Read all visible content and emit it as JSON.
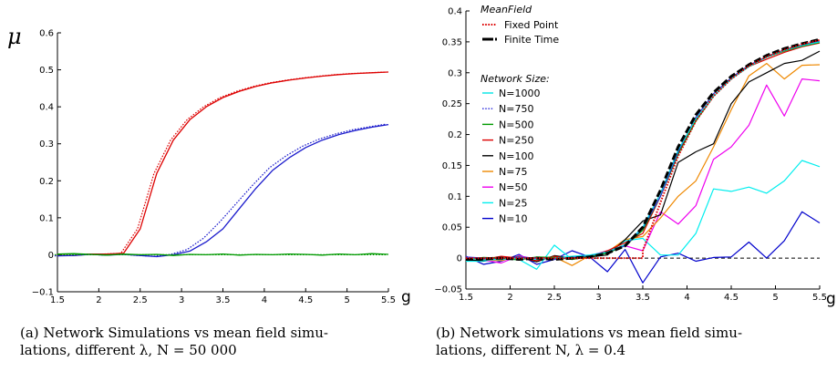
{
  "captions": {
    "a_line1": "(a) Network Simulations vs mean field simu-",
    "a_line2": "lations, different λ, N = 50 000",
    "b_line1": "(b) Network simulations vs mean field simu-",
    "b_line2": "lations, different N, λ = 0.4"
  },
  "chart_data": [
    {
      "type": "line",
      "title": "",
      "ylabel": "μ",
      "xlabel": "g",
      "xlim": [
        1.5,
        5.5
      ],
      "ylim": [
        -0.1,
        0.6
      ],
      "xticks": [
        "1.5",
        "2",
        "2.5",
        "3",
        "3.5",
        "4",
        "4.5",
        "5",
        "5.5"
      ],
      "yticks": [
        "−0.1",
        "0",
        "0.1",
        "0.2",
        "0.3",
        "0.4",
        "0.5",
        "0.6"
      ],
      "x": [
        1.5,
        1.7,
        1.9,
        2.1,
        2.3,
        2.5,
        2.7,
        2.9,
        3.1,
        3.3,
        3.5,
        3.7,
        3.9,
        4.1,
        4.3,
        4.5,
        4.7,
        4.9,
        5.1,
        5.3,
        5.5
      ],
      "grid": false,
      "series": [
        {
          "color": "#dd0000",
          "style": "solid",
          "values": [
            -0.002,
            -0.002,
            0.002,
            0.002,
            0.004,
            0.07,
            0.22,
            0.31,
            0.365,
            0.4,
            0.425,
            0.442,
            0.455,
            0.465,
            0.472,
            0.478,
            0.483,
            0.487,
            0.49,
            0.492,
            0.494
          ]
        },
        {
          "color": "#dd0000",
          "style": "dotted",
          "values": [
            -0.002,
            -0.002,
            0.002,
            0.002,
            0.004,
            0.07,
            0.22,
            0.31,
            0.365,
            0.4,
            0.425,
            0.442,
            0.455,
            0.465,
            0.472,
            0.478,
            0.483,
            0.487,
            0.49,
            0.492,
            0.494
          ]
        },
        {
          "color": "#1a1acc",
          "style": "solid",
          "values": [
            -0.003,
            -0.002,
            0.001,
            -0.001,
            0.001,
            -0.002,
            -0.005,
            0.0,
            0.01,
            0.035,
            0.07,
            0.125,
            0.18,
            0.228,
            0.262,
            0.29,
            0.31,
            0.325,
            0.336,
            0.345,
            0.352
          ]
        },
        {
          "color": "#1a1acc",
          "style": "dotted",
          "values": [
            -0.003,
            -0.002,
            0.001,
            -0.001,
            0.001,
            -0.002,
            -0.004,
            0.001,
            0.014,
            0.045,
            0.09,
            0.14,
            0.19,
            0.236,
            0.268,
            0.294,
            0.313,
            0.327,
            0.338,
            0.346,
            0.353
          ]
        },
        {
          "color": "#009900",
          "style": "solid",
          "values": [
            0.002,
            0.003,
            0.001,
            -0.001,
            0.002,
            0.0,
            0.001,
            -0.002,
            0.001,
            0.0,
            0.002,
            -0.001,
            0.001,
            0.0,
            0.002,
            0.001,
            -0.001,
            0.002,
            0.0,
            0.003,
            0.001
          ]
        },
        {
          "color": "#009900",
          "style": "dotted",
          "values": [
            0.0,
            0.0,
            0.0,
            0.0,
            0.0,
            0.0,
            0.0,
            0.0,
            0.0,
            0.0,
            0.0,
            0.0,
            0.0,
            0.0,
            0.0,
            0.0,
            0.0,
            0.0,
            0.0,
            0.0,
            0.0
          ]
        }
      ]
    },
    {
      "type": "line",
      "title": "",
      "xlabel": "g",
      "ylabel": "",
      "xlim": [
        1.5,
        5.5
      ],
      "ylim": [
        -0.05,
        0.4
      ],
      "xticks": [
        "1.5",
        "2",
        "2.5",
        "3",
        "3.5",
        "4",
        "4.5",
        "5",
        "5.5"
      ],
      "yticks": [
        "−0.05",
        "0",
        "0.05",
        "0.1",
        "0.15",
        "0.2",
        "0.25",
        "0.3",
        "0.35",
        "0.4"
      ],
      "x": [
        1.5,
        1.7,
        1.9,
        2.1,
        2.3,
        2.5,
        2.7,
        2.9,
        3.1,
        3.3,
        3.5,
        3.7,
        3.9,
        4.1,
        4.3,
        4.5,
        4.7,
        4.9,
        5.1,
        5.3,
        5.5
      ],
      "grid": false,
      "legend": {
        "placement": "top-left",
        "meanfield_title": "MeanField",
        "meanfield_entries": [
          {
            "label": "Fixed Point",
            "color": "#dd0000",
            "style": "dotted"
          },
          {
            "label": "Finite Time",
            "color": "#000000",
            "style": "dashed"
          }
        ],
        "network_title": "Network Size:"
      },
      "meanfield": {
        "fixed_point": {
          "x": [
            1.5,
            3.5,
            3.5,
            3.7,
            3.9,
            4.1,
            4.3,
            4.5,
            4.7,
            4.9,
            5.1,
            5.3,
            5.5
          ],
          "values": [
            0.0,
            0.0,
            0.012,
            0.09,
            0.165,
            0.222,
            0.262,
            0.29,
            0.311,
            0.326,
            0.337,
            0.346,
            0.353
          ]
        },
        "finite_time": {
          "x": [
            1.5,
            1.7,
            1.9,
            2.1,
            2.3,
            2.5,
            2.7,
            2.9,
            3.1,
            3.3,
            3.5,
            3.7,
            3.9,
            4.1,
            4.3,
            4.5,
            4.7,
            4.9,
            5.1,
            5.3,
            5.5
          ],
          "values": [
            -0.002,
            -0.001,
            0.0,
            -0.002,
            0.0,
            -0.002,
            0.0,
            0.002,
            0.008,
            0.02,
            0.05,
            0.11,
            0.18,
            0.232,
            0.268,
            0.294,
            0.313,
            0.328,
            0.339,
            0.347,
            0.354
          ]
        }
      },
      "series": [
        {
          "name": "N=1000",
          "color": "#00e5e5",
          "values": [
            0.0,
            -0.003,
            -0.002,
            0.0,
            -0.002,
            0.0,
            0.003,
            0.005,
            0.01,
            0.022,
            0.05,
            0.105,
            0.175,
            0.225,
            0.262,
            0.29,
            0.31,
            0.325,
            0.336,
            0.344,
            0.35
          ]
        },
        {
          "name": "N=750",
          "color": "#3333dd",
          "values": [
            0.002,
            0.0,
            -0.002,
            0.002,
            0.0,
            -0.002,
            0.002,
            0.004,
            0.01,
            0.02,
            0.048,
            0.1,
            0.172,
            0.228,
            0.266,
            0.292,
            0.312,
            0.326,
            0.337,
            0.345,
            0.351
          ]
        },
        {
          "name": "N=500",
          "color": "#009900",
          "values": [
            -0.002,
            0.001,
            0.0,
            -0.003,
            0.002,
            0.001,
            -0.002,
            0.003,
            0.008,
            0.02,
            0.045,
            0.1,
            0.168,
            0.222,
            0.262,
            0.29,
            0.31,
            0.325,
            0.335,
            0.343,
            0.349
          ]
        },
        {
          "name": "N=250",
          "color": "#dd0000",
          "values": [
            0.002,
            -0.002,
            0.003,
            0.0,
            -0.004,
            0.003,
            -0.002,
            0.002,
            0.012,
            0.025,
            0.04,
            0.1,
            0.17,
            0.222,
            0.262,
            0.29,
            0.31,
            0.322,
            0.333,
            0.342,
            0.348
          ]
        },
        {
          "name": "N=100",
          "color": "#000000",
          "values": [
            -0.003,
            -0.004,
            0.0,
            0.002,
            -0.006,
            0.004,
            0.0,
            0.002,
            0.005,
            0.03,
            0.06,
            0.07,
            0.155,
            0.172,
            0.185,
            0.25,
            0.285,
            0.3,
            0.315,
            0.32,
            0.335
          ]
        },
        {
          "name": "N=75",
          "color": "#ee8800",
          "values": [
            -0.003,
            -0.003,
            -0.004,
            0.003,
            -0.004,
            0.002,
            -0.012,
            0.004,
            0.01,
            0.03,
            0.035,
            0.065,
            0.1,
            0.125,
            0.18,
            0.24,
            0.295,
            0.315,
            0.29,
            0.312,
            0.313
          ]
        },
        {
          "name": "N=50",
          "color": "#ee00ee",
          "values": [
            0.002,
            -0.003,
            -0.008,
            0.004,
            -0.002,
            0.003,
            0.0,
            0.004,
            0.012,
            0.02,
            0.012,
            0.075,
            0.055,
            0.085,
            0.16,
            0.18,
            0.215,
            0.28,
            0.23,
            0.29,
            0.287
          ]
        },
        {
          "name": "N=25",
          "color": "#00eeee",
          "values": [
            -0.005,
            -0.005,
            -0.002,
            -0.002,
            -0.018,
            0.021,
            -0.002,
            0.003,
            0.008,
            0.028,
            0.032,
            0.005,
            0.005,
            0.04,
            0.112,
            0.108,
            0.115,
            0.105,
            0.125,
            0.158,
            0.148
          ]
        },
        {
          "name": "N=10",
          "color": "#0000cc",
          "values": [
            0.003,
            -0.01,
            -0.005,
            0.006,
            -0.01,
            -0.002,
            0.012,
            0.002,
            -0.022,
            0.014,
            -0.04,
            0.002,
            0.008,
            -0.005,
            0.001,
            0.002,
            0.026,
            0.0,
            0.028,
            0.075,
            0.057
          ]
        }
      ]
    }
  ]
}
